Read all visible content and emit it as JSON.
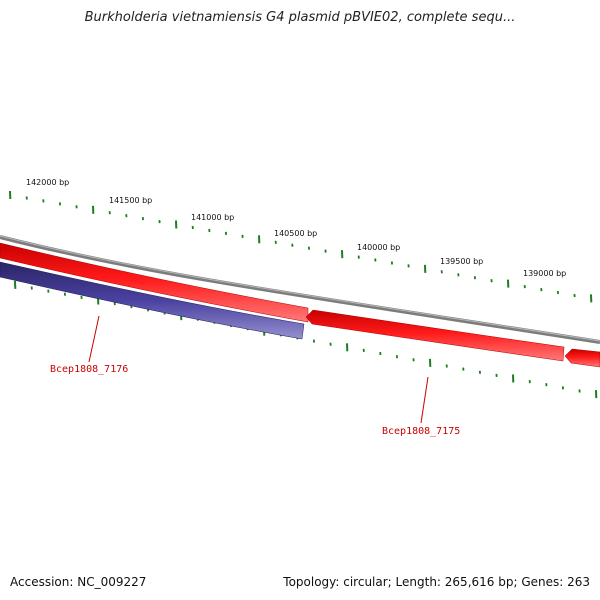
{
  "title": "Burkholderia vietnamiensis G4 plasmid pBVIE02, complete sequ...",
  "colors": {
    "backbone": "#858585",
    "forward_gene": "#ee0000",
    "reverse_gene": "#3b3384",
    "tick": "#1e7d1e",
    "gene_label": "#cc0000"
  },
  "scale_labels": [
    "142000 bp",
    "141500 bp",
    "141000 bp",
    "140500 bp",
    "140000 bp",
    "139500 bp",
    "139000 bp"
  ],
  "genes": [
    {
      "label": "Bcep1808_7176",
      "strand": "reverse"
    },
    {
      "label": "Bcep1808_7175",
      "strand": "forward"
    }
  ],
  "footer": {
    "accession": "Accession: NC_009227",
    "summary": "Topology: circular; Length: 265,616 bp; Genes: 263"
  }
}
